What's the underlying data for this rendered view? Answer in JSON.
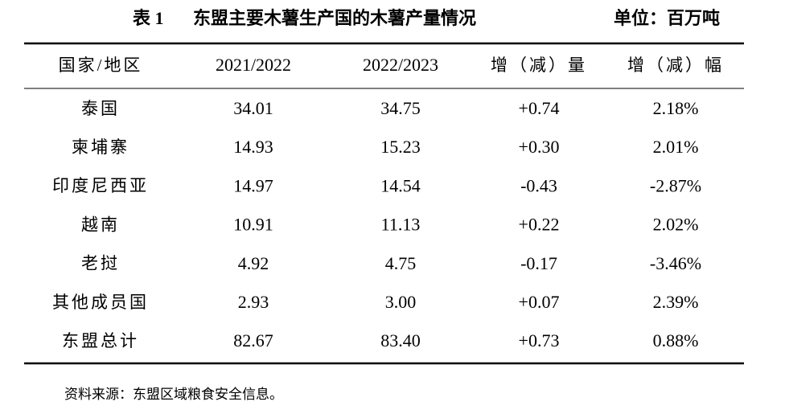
{
  "header": {
    "label": "表 1",
    "title": "东盟主要木薯生产国的木薯产量情况",
    "unit": "单位：百万吨"
  },
  "table": {
    "columns": [
      "国家/地区",
      "2021/2022",
      "2022/2023",
      "增（减）量",
      "增（减）幅"
    ],
    "rows": [
      [
        "泰国",
        "34.01",
        "34.75",
        "+0.74",
        "2.18%"
      ],
      [
        "柬埔寨",
        "14.93",
        "15.23",
        "+0.30",
        "2.01%"
      ],
      [
        "印度尼西亚",
        "14.97",
        "14.54",
        "-0.43",
        "-2.87%"
      ],
      [
        "越南",
        "10.91",
        "11.13",
        "+0.22",
        "2.02%"
      ],
      [
        "老挝",
        "4.92",
        "4.75",
        "-0.17",
        "-3.46%"
      ],
      [
        "其他成员国",
        "2.93",
        "3.00",
        "+0.07",
        "2.39%"
      ],
      [
        "东盟总计",
        "82.67",
        "83.40",
        "+0.73",
        "0.88%"
      ]
    ]
  },
  "footer": {
    "source": "资料来源：东盟区域粮食安全信息。"
  }
}
